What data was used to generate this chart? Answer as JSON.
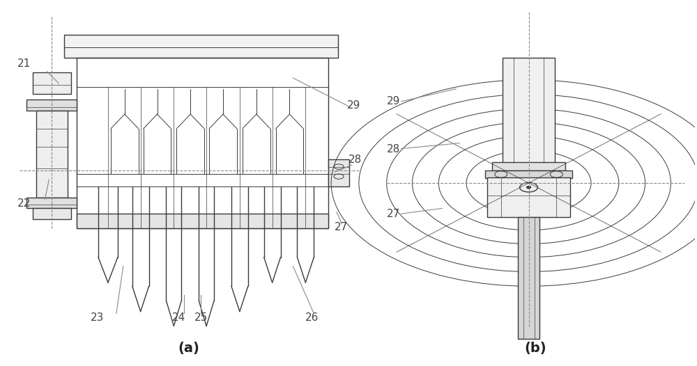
{
  "bg_color": "#ffffff",
  "line_color": "#3a3a3a",
  "dash_color": "#888888",
  "label_color": "#444444",
  "figsize": [
    10.0,
    5.26
  ],
  "dpi": 100,
  "caption_a": "(a)",
  "caption_b": "(b)"
}
